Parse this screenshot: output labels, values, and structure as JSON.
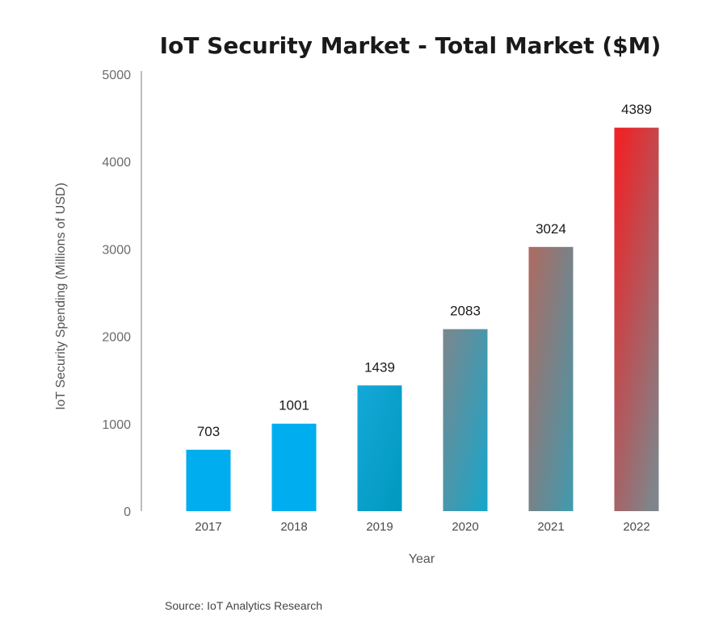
{
  "chart_data": {
    "type": "bar",
    "title": "IoT Security Market - Total Market ($M)",
    "xlabel": "Year",
    "ylabel": "IoT Security Spending (Millions of USD)",
    "categories": [
      "2017",
      "2018",
      "2019",
      "2020",
      "2021",
      "2022"
    ],
    "values": [
      703,
      1001,
      1439,
      2083,
      3024,
      4389
    ],
    "data_labels": [
      "703",
      "1001",
      "1439",
      "2083",
      "3024",
      "4389"
    ],
    "ylim": [
      0,
      5000
    ],
    "yticks": [
      "0",
      "1000",
      "2000",
      "3000",
      "4000",
      "5000"
    ],
    "grid": false,
    "legend": "none",
    "source": "Source: IoT Analytics Research",
    "colors": {
      "bar_blue": "#00aeef",
      "bar_teal": "#1ba3c6",
      "bar_gray": "#7c868c",
      "bar_red": "#e8262a",
      "axis": "#bdbdbd"
    }
  }
}
